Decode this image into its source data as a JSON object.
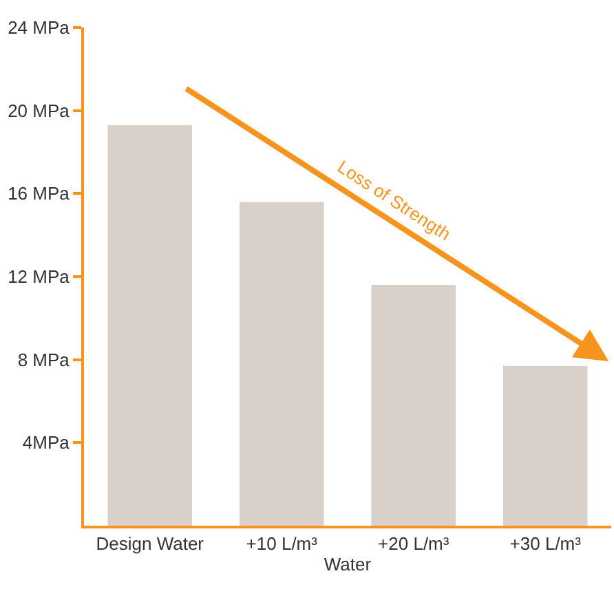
{
  "chart_data": {
    "type": "bar",
    "xlabel": "Water",
    "categories": [
      "Design Water",
      "+10 L/m³",
      "+20 L/m³",
      "+30 L/m³"
    ],
    "values": [
      19.3,
      15.6,
      11.6,
      7.7
    ],
    "color": "#d9d0ca",
    "ylim": [
      0,
      24
    ],
    "yticks": [
      {
        "value": 4,
        "label": "4MPa"
      },
      {
        "value": 8,
        "label": "8 MPa"
      },
      {
        "value": 12,
        "label": "12 MPa"
      },
      {
        "value": 16,
        "label": "16 MPa"
      },
      {
        "value": 20,
        "label": "20 MPa"
      },
      {
        "value": 24,
        "label": "24 MPa"
      }
    ],
    "annotations": [
      "Loss of Strength"
    ]
  }
}
